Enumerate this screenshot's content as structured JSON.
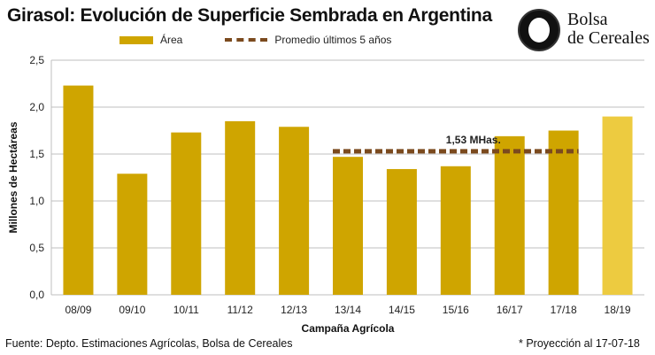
{
  "title": "Girasol: Evolución de Superficie Sembrada en Argentina",
  "logo": {
    "line1": "Bolsa",
    "line2": "de Cereales"
  },
  "footer": {
    "source": "Fuente: Depto. Estimaciones Agrícolas, Bolsa de Cereales",
    "note": "* Proyección al 17-07-18"
  },
  "colors": {
    "bar": "#CFA500",
    "projection": "#EDCB40",
    "average": "#7B4A1E",
    "grid": "#BFBFBF"
  },
  "chart_data": {
    "type": "bar",
    "title": "Girasol: Evolución de Superficie Sembrada en Argentina",
    "xlabel": "Campaña Agrícola",
    "ylabel": "Millones de Hectáreas",
    "ylim": [
      0,
      2.5
    ],
    "yticks": [
      "0,0",
      "0,5",
      "1,0",
      "1,5",
      "2,0",
      "2,5"
    ],
    "grid": true,
    "legend_position": "top",
    "categories": [
      "08/09",
      "09/10",
      "10/11",
      "11/12",
      "12/13",
      "13/14",
      "14/15",
      "15/16",
      "16/17",
      "17/18",
      "18/19"
    ],
    "series": [
      {
        "name": "Área",
        "values": [
          2.23,
          1.29,
          1.73,
          1.85,
          1.79,
          1.47,
          1.34,
          1.37,
          1.69,
          1.75,
          1.9
        ]
      }
    ],
    "projected_index": 10,
    "average": {
      "name": "Promedio últimos 5 años",
      "value": 1.53,
      "from": "13/14",
      "to": "17/18",
      "label": "1,53 MHas."
    }
  }
}
